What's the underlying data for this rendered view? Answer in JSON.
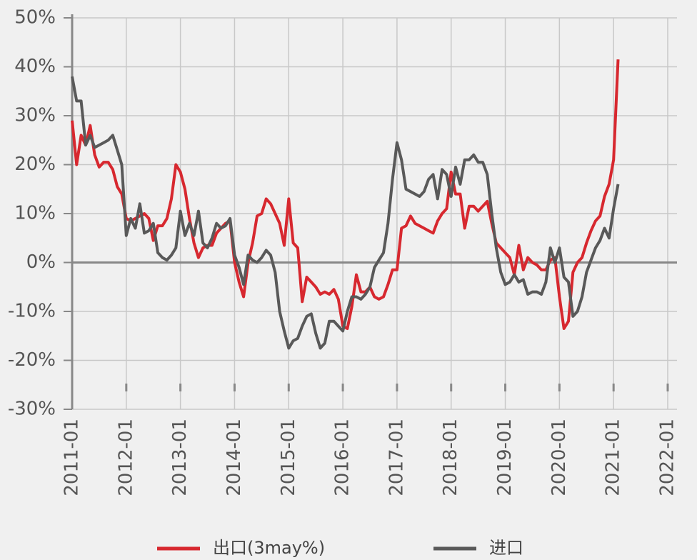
{
  "chart_data": {
    "type": "line",
    "x": [
      "2011-01",
      "2011-02",
      "2011-03",
      "2011-04",
      "2011-05",
      "2011-06",
      "2011-07",
      "2011-08",
      "2011-09",
      "2011-10",
      "2011-11",
      "2011-12",
      "2012-01",
      "2012-02",
      "2012-03",
      "2012-04",
      "2012-05",
      "2012-06",
      "2012-07",
      "2012-08",
      "2012-09",
      "2012-10",
      "2012-11",
      "2012-12",
      "2013-01",
      "2013-02",
      "2013-03",
      "2013-04",
      "2013-05",
      "2013-06",
      "2013-07",
      "2013-08",
      "2013-09",
      "2013-10",
      "2013-11",
      "2013-12",
      "2014-01",
      "2014-02",
      "2014-03",
      "2014-04",
      "2014-05",
      "2014-06",
      "2014-07",
      "2014-08",
      "2014-09",
      "2014-10",
      "2014-11",
      "2014-12",
      "2015-01",
      "2015-02",
      "2015-03",
      "2015-04",
      "2015-05",
      "2015-06",
      "2015-07",
      "2015-08",
      "2015-09",
      "2015-10",
      "2015-11",
      "2015-12",
      "2016-01",
      "2016-02",
      "2016-03",
      "2016-04",
      "2016-05",
      "2016-06",
      "2016-07",
      "2016-08",
      "2016-09",
      "2016-10",
      "2016-11",
      "2016-12",
      "2017-01",
      "2017-02",
      "2017-03",
      "2017-04",
      "2017-05",
      "2017-06",
      "2017-07",
      "2017-08",
      "2017-09",
      "2017-10",
      "2017-11",
      "2017-12",
      "2018-01",
      "2018-02",
      "2018-03",
      "2018-04",
      "2018-05",
      "2018-06",
      "2018-07",
      "2018-08",
      "2018-09",
      "2018-10",
      "2018-11",
      "2018-12",
      "2019-01",
      "2019-02",
      "2019-03",
      "2019-04",
      "2019-05",
      "2019-06",
      "2019-07",
      "2019-08",
      "2019-09",
      "2019-10",
      "2019-11",
      "2019-12",
      "2020-01",
      "2020-02",
      "2020-03",
      "2020-04",
      "2020-05",
      "2020-06",
      "2020-07",
      "2020-08",
      "2020-09",
      "2020-10",
      "2020-11",
      "2020-12",
      "2021-01",
      "2021-02"
    ],
    "series": [
      {
        "name": "出口(3may%)",
        "color": "#d7282f",
        "values": [
          29,
          20,
          26,
          24,
          28,
          22,
          19.5,
          20.5,
          20.5,
          19,
          15.5,
          14,
          9,
          8.5,
          9,
          9.5,
          10,
          9,
          4.5,
          7.5,
          7.5,
          9,
          13,
          20,
          18.5,
          15,
          9,
          4,
          1,
          3,
          3.5,
          3.5,
          6,
          7,
          8,
          8.5,
          0,
          -4,
          -7,
          0,
          4,
          9.5,
          10,
          13,
          12,
          10,
          8,
          3.5,
          13,
          4,
          3,
          -8,
          -3,
          -4,
          -5,
          -6.5,
          -6,
          -6.5,
          -5.5,
          -7.5,
          -13,
          -13.5,
          -9,
          -2.5,
          -6,
          -6,
          -5,
          -7,
          -7.5,
          -7,
          -4.5,
          -1.5,
          -1.5,
          7,
          7.5,
          9.5,
          8,
          7.5,
          7,
          6.5,
          6,
          8.5,
          10,
          11,
          18.5,
          14,
          14,
          7,
          11.5,
          11.5,
          10.5,
          11.5,
          12.5,
          8,
          4,
          3,
          2,
          1,
          -2.5,
          3.5,
          -1.5,
          1,
          0,
          -0.5,
          -1.5,
          -1.5,
          0.5,
          1,
          -7,
          -13.5,
          -12,
          -2,
          0,
          1,
          4,
          6.5,
          8.5,
          9.5,
          13.5,
          16,
          21,
          41.5
        ]
      },
      {
        "name": "进口",
        "color": "#595959",
        "values": [
          38,
          33,
          33,
          24,
          26,
          23.5,
          24,
          24.5,
          25,
          26,
          23,
          20,
          5.5,
          9,
          7,
          12,
          6,
          6.5,
          8,
          2,
          1,
          0.5,
          1.5,
          3,
          10.5,
          5.5,
          8,
          5.5,
          10.5,
          4,
          3,
          5,
          8,
          7,
          7.5,
          9,
          1.5,
          -1,
          -4.5,
          1.5,
          0.5,
          0,
          1,
          2.5,
          1.5,
          -2,
          -10,
          -14,
          -17.5,
          -16,
          -15.5,
          -13,
          -11,
          -10.5,
          -14.5,
          -17.5,
          -16.5,
          -12,
          -12,
          -13,
          -14,
          -10,
          -7,
          -7,
          -7.5,
          -6.5,
          -5,
          -1,
          0.5,
          2,
          8,
          17,
          24.5,
          21,
          15,
          14.5,
          14,
          13.5,
          14.5,
          17,
          18,
          13,
          19,
          18,
          13.5,
          19.5,
          16,
          21,
          21,
          22,
          20.5,
          20.5,
          18,
          10,
          3,
          -2,
          -4.5,
          -4,
          -2.5,
          -4,
          -3.5,
          -6.5,
          -6,
          -6,
          -6.5,
          -4,
          3,
          0,
          3,
          -3,
          -4,
          -11,
          -10,
          -7,
          -2,
          0.5,
          3,
          4.5,
          7,
          5,
          11,
          16
        ]
      }
    ],
    "xlim": [
      "2011-01",
      "2022-01"
    ],
    "xticks": [
      "2011-01",
      "2012-01",
      "2013-01",
      "2014-01",
      "2015-01",
      "2016-01",
      "2017-01",
      "2018-01",
      "2019-01",
      "2020-01",
      "2021-01",
      "2022-01"
    ],
    "ylim": [
      -30,
      50
    ],
    "yticks": [
      {
        "value": -30,
        "label": "-30%"
      },
      {
        "value": -20,
        "label": "-20%"
      },
      {
        "value": -10,
        "label": "-10%"
      },
      {
        "value": 0,
        "label": "0%"
      },
      {
        "value": 10,
        "label": "10%"
      },
      {
        "value": 20,
        "label": "20%"
      },
      {
        "value": 30,
        "label": "30%"
      },
      {
        "value": 40,
        "label": "40%"
      },
      {
        "value": 50,
        "label": "50%"
      }
    ],
    "grid": true
  }
}
